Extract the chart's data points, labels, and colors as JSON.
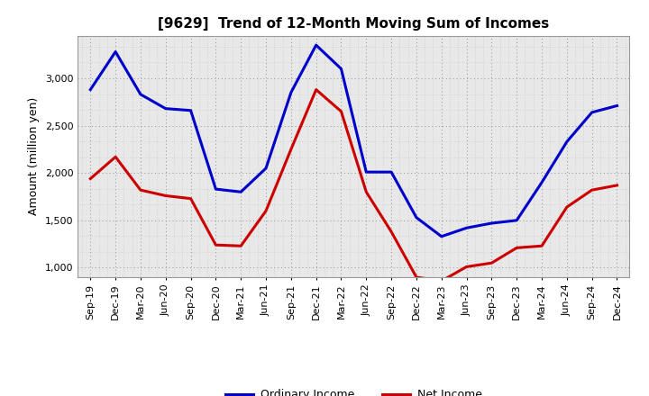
{
  "title": "[9629]  Trend of 12-Month Moving Sum of Incomes",
  "ylabel": "Amount (million yen)",
  "ylim": [
    900,
    3450
  ],
  "yticks": [
    1000,
    1500,
    2000,
    2500,
    3000
  ],
  "background_color": "#ffffff",
  "plot_bg_color": "#e8e8e8",
  "grid_color": "#ffffff",
  "ordinary_income_color": "#0000cc",
  "net_income_color": "#cc0000",
  "line_width": 2.2,
  "x_labels": [
    "Sep-19",
    "Dec-19",
    "Mar-20",
    "Jun-20",
    "Sep-20",
    "Dec-20",
    "Mar-21",
    "Jun-21",
    "Sep-21",
    "Dec-21",
    "Mar-22",
    "Jun-22",
    "Sep-22",
    "Dec-22",
    "Mar-23",
    "Jun-23",
    "Sep-23",
    "Dec-23",
    "Mar-24",
    "Jun-24",
    "Sep-24",
    "Dec-24"
  ],
  "ordinary_income": [
    2880,
    3280,
    2830,
    2680,
    2660,
    1830,
    1800,
    2050,
    2850,
    3350,
    3100,
    2010,
    2010,
    1530,
    1330,
    1420,
    1470,
    1500,
    1900,
    2330,
    2640,
    2710
  ],
  "net_income": [
    1940,
    2170,
    1820,
    1760,
    1730,
    1240,
    1230,
    1600,
    2250,
    2880,
    2650,
    1800,
    1380,
    900,
    860,
    1010,
    1050,
    1210,
    1230,
    1640,
    1820,
    1870
  ],
  "legend_labels": [
    "Ordinary Income",
    "Net Income"
  ],
  "title_fontsize": 11,
  "ylabel_fontsize": 9,
  "tick_fontsize": 8,
  "legend_fontsize": 9
}
